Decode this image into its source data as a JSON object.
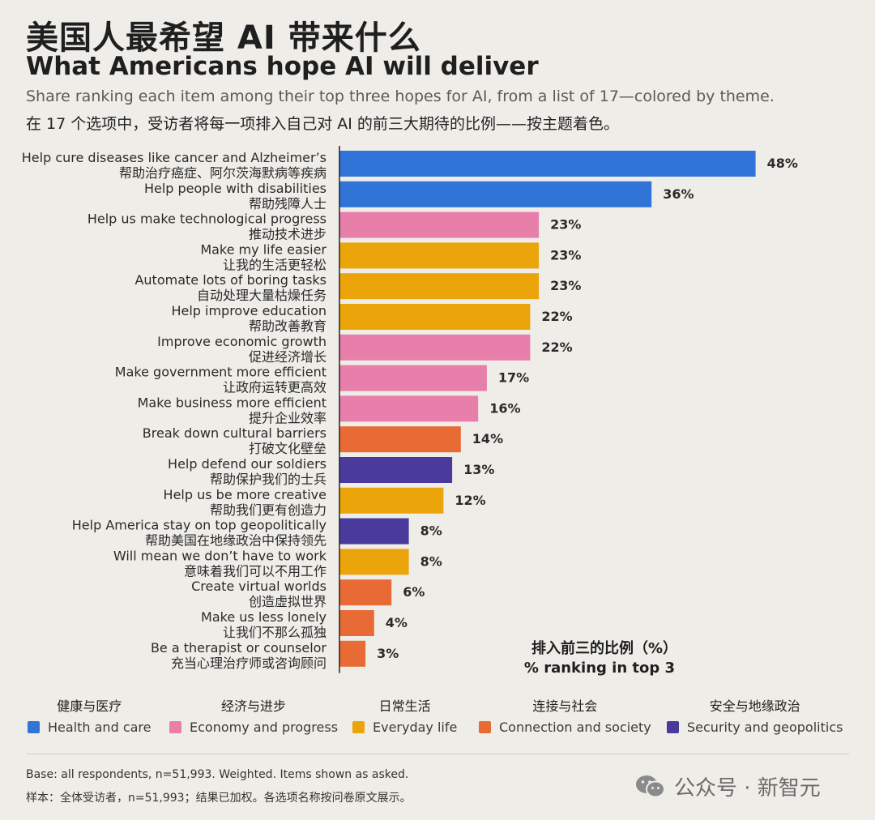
{
  "header": {
    "title_cn": "美国人最希望 AI 带来什么",
    "title_en": "What Americans hope AI will deliver",
    "subtitle_en": "Share ranking each item among their top three hopes for AI, from a list of 17—colored by theme.",
    "subtitle_cn": "在 17 个选项中，受访者将每一项排入自己对 AI 的前三大期待的比例——按主题着色。"
  },
  "chart_data": {
    "type": "bar",
    "orientation": "horizontal",
    "unit_label_cn": "排入前三的比例（%）",
    "unit_label_en": "% ranking in top 3",
    "items": [
      {
        "en": "Help cure diseases like cancer and Alzheimer’s",
        "cn": "帮助治疗癌症、阿尔茨海默病等疾病",
        "value": 48,
        "label": "48%",
        "theme": "health"
      },
      {
        "en": "Help people with disabilities",
        "cn": "帮助残障人士",
        "value": 36,
        "label": "36%",
        "theme": "health"
      },
      {
        "en": "Help us make technological progress",
        "cn": "推动技术进步",
        "value": 23,
        "label": "23%",
        "theme": "economy"
      },
      {
        "en": "Make my life easier",
        "cn": "让我的生活更轻松",
        "value": 23,
        "label": "23%",
        "theme": "everyday"
      },
      {
        "en": "Automate lots of boring tasks",
        "cn": "自动处理大量枯燥任务",
        "value": 23,
        "label": "23%",
        "theme": "everyday"
      },
      {
        "en": "Help improve education",
        "cn": "帮助改善教育",
        "value": 22,
        "label": "22%",
        "theme": "everyday"
      },
      {
        "en": "Improve economic growth",
        "cn": "促进经济增长",
        "value": 22,
        "label": "22%",
        "theme": "economy"
      },
      {
        "en": "Make government more efficient",
        "cn": "让政府运转更高效",
        "value": 17,
        "label": "17%",
        "theme": "economy"
      },
      {
        "en": "Make business more efficient",
        "cn": "提升企业效率",
        "value": 16,
        "label": "16%",
        "theme": "economy"
      },
      {
        "en": "Break down cultural barriers",
        "cn": "打破文化壁垒",
        "value": 14,
        "label": "14%",
        "theme": "connection"
      },
      {
        "en": "Help defend our soldiers",
        "cn": "帮助保护我们的士兵",
        "value": 13,
        "label": "13%",
        "theme": "security"
      },
      {
        "en": "Help us be more creative",
        "cn": "帮助我们更有创造力",
        "value": 12,
        "label": "12%",
        "theme": "everyday"
      },
      {
        "en": "Help America stay on top geopolitically",
        "cn": "帮助美国在地缘政治中保持领先",
        "value": 8,
        "label": "8%",
        "theme": "security"
      },
      {
        "en": "Will mean we don’t have to work",
        "cn": "意味着我们可以不用工作",
        "value": 8,
        "label": "8%",
        "theme": "everyday"
      },
      {
        "en": "Create virtual worlds",
        "cn": "创造虚拟世界",
        "value": 6,
        "label": "6%",
        "theme": "connection"
      },
      {
        "en": "Make us less lonely",
        "cn": "让我们不那么孤独",
        "value": 4,
        "label": "4%",
        "theme": "connection"
      },
      {
        "en": "Be a therapist or counselor",
        "cn": "充当心理治疗师或咨询顾问",
        "value": 3,
        "label": "3%",
        "theme": "connection"
      }
    ],
    "legend_placement": "bottom",
    "grid": false
  },
  "themes": {
    "health": {
      "color": "#2f74d6"
    },
    "economy": {
      "color": "#e87faa"
    },
    "everyday": {
      "color": "#eba40a"
    },
    "connection": {
      "color": "#e86b35"
    },
    "security": {
      "color": "#4a3a9c"
    }
  },
  "legend": [
    {
      "cn": "健康与医疗",
      "en": "Health and care",
      "color": "#2f74d6"
    },
    {
      "cn": "经济与进步",
      "en": "Economy and progress",
      "color": "#e87faa"
    },
    {
      "cn": "日常生活",
      "en": "Everyday life",
      "color": "#eba40a"
    },
    {
      "cn": "连接与社会",
      "en": "Connection and society",
      "color": "#e86b35"
    },
    {
      "cn": "安全与地缘政治",
      "en": "Security and geopolitics",
      "color": "#4a3a9c"
    }
  ],
  "footer": {
    "base_en": "Base: all respondents, n=51,993. Weighted. Items shown as asked.",
    "base_cn": "样本：全体受访者，n=51,993；结果已加权。各选项名称按问卷原文展示。"
  },
  "watermark": {
    "text": "公众号 · 新智元"
  }
}
